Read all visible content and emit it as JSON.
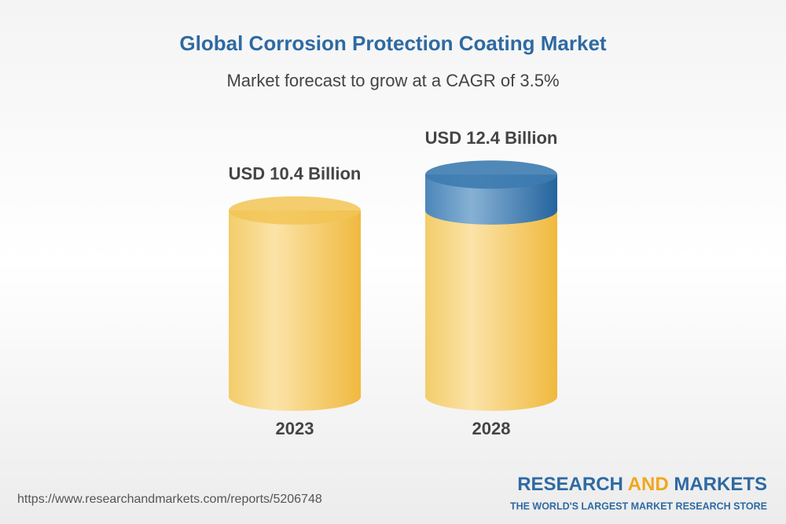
{
  "chart_data": {
    "type": "cylinder",
    "title": "Global Corrosion Protection Coating Market",
    "subtitle": "Market forecast to grow at a CAGR of 3.5%",
    "categories": [
      "2023",
      "2028"
    ],
    "values": [
      10.4,
      12.4
    ],
    "value_labels": [
      "USD 10.4 Billion",
      "USD 12.4 Billion"
    ],
    "color": "#f2c455",
    "growth_color": "#3d7bb0"
  },
  "footer": {
    "url": "https://www.researchandmarkets.com/reports/5206748",
    "brand": [
      "RESEARCH",
      "AND",
      "MARKETS"
    ],
    "tagline": "THE WORLD'S LARGEST MARKET RESEARCH STORE"
  }
}
